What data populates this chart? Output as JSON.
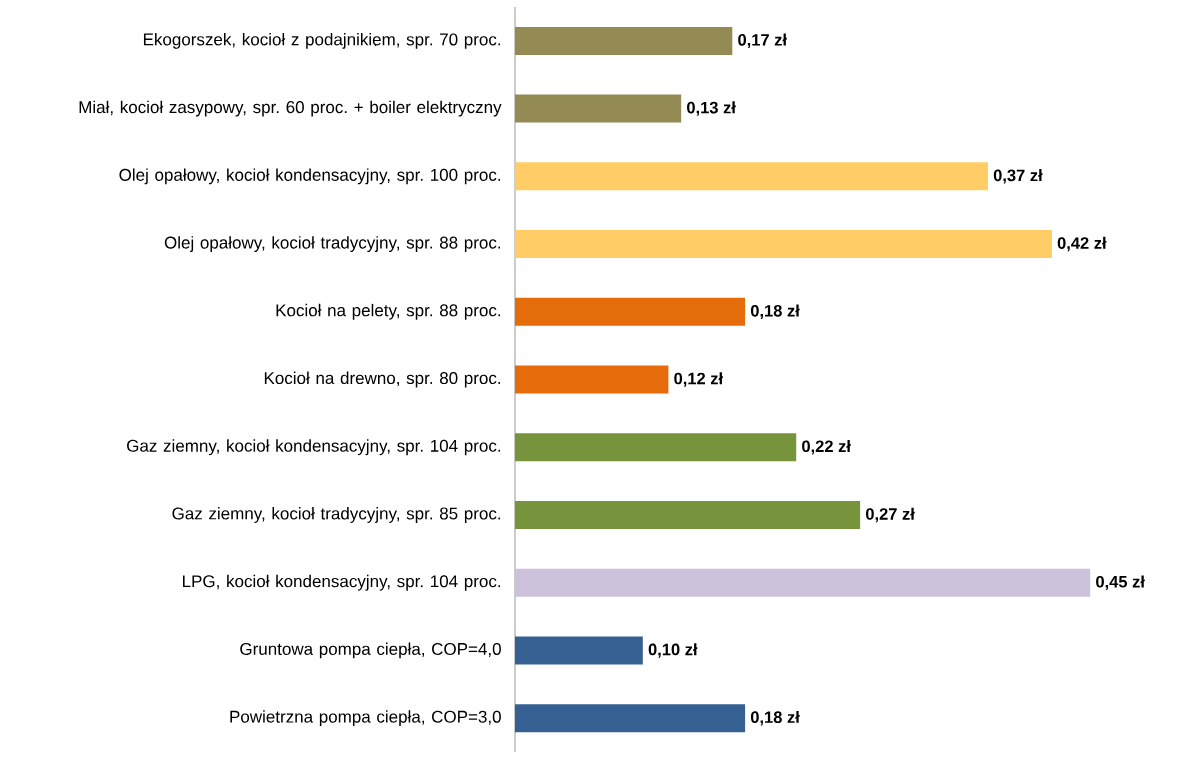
{
  "chart_data": {
    "type": "bar",
    "orientation": "horizontal",
    "categories": [
      "Ekogorszek, kocioł z podajnikiem, spr. 70 proc.",
      "Miał, kocioł zasypowy, spr. 60 proc. + boiler elektryczny",
      "Olej opałowy, kocioł kondensacyjny, spr. 100 proc.",
      "Olej opałowy, kocioł tradycyjny, spr. 88 proc.",
      "Kocioł na pelety, spr. 88 proc.",
      "Kocioł na drewno, spr. 80 proc.",
      "Gaz ziemny, kocioł kondensacyjny, spr. 104 proc.",
      "Gaz ziemny, kocioł tradycyjny, spr. 85 proc.",
      "LPG, kocioł kondensacyjny, spr. 104 proc.",
      "Gruntowa pompa ciepła, COP=4,0",
      "Powietrzna pompa ciepła, COP=3,0"
    ],
    "values": [
      0.17,
      0.13,
      0.37,
      0.42,
      0.18,
      0.12,
      0.22,
      0.27,
      0.45,
      0.1,
      0.18
    ],
    "value_labels": [
      "0,17 zł",
      "0,13 zł",
      "0,37 zł",
      "0,42 zł",
      "0,18 zł",
      "0,12 zł",
      "0,22 zł",
      "0,27 zł",
      "0,45 zł",
      "0,10 zł",
      "0,18 zł"
    ],
    "colors": [
      "#948a54",
      "#948a54",
      "#ffcc66",
      "#ffcc66",
      "#e46c0a",
      "#e46c0a",
      "#77933c",
      "#77933c",
      "#ccc1da",
      "#376092",
      "#376092"
    ]
  }
}
